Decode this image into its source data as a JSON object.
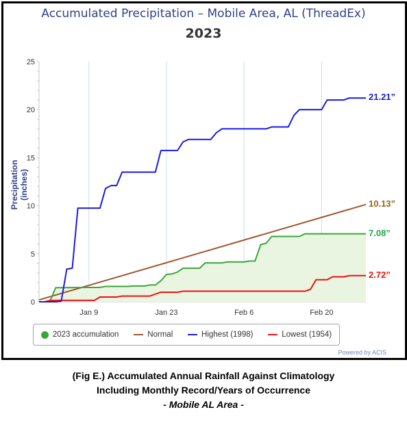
{
  "chart_data": {
    "type": "line",
    "title": "Accumulated Precipitation – Mobile Area, AL (ThreadEx)",
    "subtitle": "2023",
    "ylabel": "Precipitation (inches)",
    "ylim": [
      0,
      25
    ],
    "yticks": [
      0,
      5,
      10,
      15,
      20,
      25
    ],
    "xlim": [
      "2022-12-31",
      "2023-02-28"
    ],
    "xticks": [
      {
        "date": "2023-01-09",
        "label": "Jan 9"
      },
      {
        "date": "2023-01-23",
        "label": "Jan 23"
      },
      {
        "date": "2023-02-06",
        "label": "Feb 6"
      },
      {
        "date": "2023-02-20",
        "label": "Feb 20"
      }
    ],
    "grid": true,
    "legend_position": "bottom",
    "series": [
      {
        "name": "2023 accumulation",
        "color": "#3aa63a",
        "fill": "#e9f4e1",
        "marker": "dot",
        "points": [
          [
            "2022-12-31",
            0
          ],
          [
            "2023-01-01",
            0
          ],
          [
            "2023-01-02",
            0.1
          ],
          [
            "2023-01-03",
            1.47
          ],
          [
            "2023-01-09",
            1.5
          ],
          [
            "2023-01-11",
            1.5
          ],
          [
            "2023-01-12",
            1.6
          ],
          [
            "2023-01-16",
            1.6
          ],
          [
            "2023-01-17",
            1.65
          ],
          [
            "2023-01-19",
            1.65
          ],
          [
            "2023-01-20",
            1.75
          ],
          [
            "2023-01-21",
            1.75
          ],
          [
            "2023-01-22",
            2.2
          ],
          [
            "2023-01-23",
            2.85
          ],
          [
            "2023-01-24",
            2.9
          ],
          [
            "2023-01-25",
            3.1
          ],
          [
            "2023-01-26",
            3.5
          ],
          [
            "2023-01-29",
            3.5
          ],
          [
            "2023-01-30",
            4.05
          ],
          [
            "2023-02-02",
            4.05
          ],
          [
            "2023-02-03",
            4.15
          ],
          [
            "2023-02-06",
            4.15
          ],
          [
            "2023-02-07",
            4.25
          ],
          [
            "2023-02-08",
            4.25
          ],
          [
            "2023-02-09",
            5.95
          ],
          [
            "2023-02-10",
            6.1
          ],
          [
            "2023-02-11",
            6.8
          ],
          [
            "2023-02-16",
            6.8
          ],
          [
            "2023-02-17",
            7.08
          ],
          [
            "2023-02-28",
            7.08
          ]
        ],
        "end_label": "7.08”"
      },
      {
        "name": "Normal",
        "color": "#a0522d",
        "points": [
          [
            "2022-12-31",
            0.2
          ],
          [
            "2023-02-28",
            10.13
          ]
        ],
        "end_label": "10.13”"
      },
      {
        "name": "Highest (1998)",
        "color": "#1a1adf",
        "points": [
          [
            "2022-12-31",
            0
          ],
          [
            "2023-01-03",
            0
          ],
          [
            "2023-01-04",
            0.05
          ],
          [
            "2023-01-05",
            3.4
          ],
          [
            "2023-01-06",
            3.5
          ],
          [
            "2023-01-07",
            9.75
          ],
          [
            "2023-01-11",
            9.75
          ],
          [
            "2023-01-12",
            11.8
          ],
          [
            "2023-01-13",
            12.1
          ],
          [
            "2023-01-14",
            12.1
          ],
          [
            "2023-01-15",
            13.5
          ],
          [
            "2023-01-21",
            13.5
          ],
          [
            "2023-01-22",
            15.75
          ],
          [
            "2023-01-25",
            15.75
          ],
          [
            "2023-01-26",
            16.65
          ],
          [
            "2023-01-27",
            16.9
          ],
          [
            "2023-01-31",
            16.9
          ],
          [
            "2023-02-01",
            17.6
          ],
          [
            "2023-02-02",
            18.0
          ],
          [
            "2023-02-10",
            18.0
          ],
          [
            "2023-02-11",
            18.2
          ],
          [
            "2023-02-14",
            18.2
          ],
          [
            "2023-02-15",
            19.4
          ],
          [
            "2023-02-16",
            20.0
          ],
          [
            "2023-02-20",
            20.0
          ],
          [
            "2023-02-21",
            21.0
          ],
          [
            "2023-02-24",
            21.0
          ],
          [
            "2023-02-25",
            21.21
          ],
          [
            "2023-02-28",
            21.21
          ]
        ],
        "end_label": "21.21”"
      },
      {
        "name": "Lowest (1954)",
        "color": "#ee1111",
        "points": [
          [
            "2022-12-31",
            0
          ],
          [
            "2023-01-01",
            0
          ],
          [
            "2023-01-02",
            0.15
          ],
          [
            "2023-01-10",
            0.15
          ],
          [
            "2023-01-11",
            0.5
          ],
          [
            "2023-01-14",
            0.5
          ],
          [
            "2023-01-15",
            0.6
          ],
          [
            "2023-01-20",
            0.6
          ],
          [
            "2023-01-22",
            1.0
          ],
          [
            "2023-01-25",
            1.0
          ],
          [
            "2023-01-26",
            1.1
          ],
          [
            "2023-02-17",
            1.1
          ],
          [
            "2023-02-18",
            1.3
          ],
          [
            "2023-02-19",
            2.3
          ],
          [
            "2023-02-21",
            2.3
          ],
          [
            "2023-02-22",
            2.6
          ],
          [
            "2023-02-24",
            2.6
          ],
          [
            "2023-02-25",
            2.72
          ],
          [
            "2023-02-28",
            2.72
          ]
        ],
        "end_label": "2.72”"
      }
    ]
  },
  "credit": "Powered by ACIS",
  "caption": {
    "line1": "(Fig E.) Accumulated Annual Rainfall Against  Climatology",
    "line2": "Including Monthly Record/Years of Occurrence",
    "line3": "- Mobile AL Area -"
  }
}
